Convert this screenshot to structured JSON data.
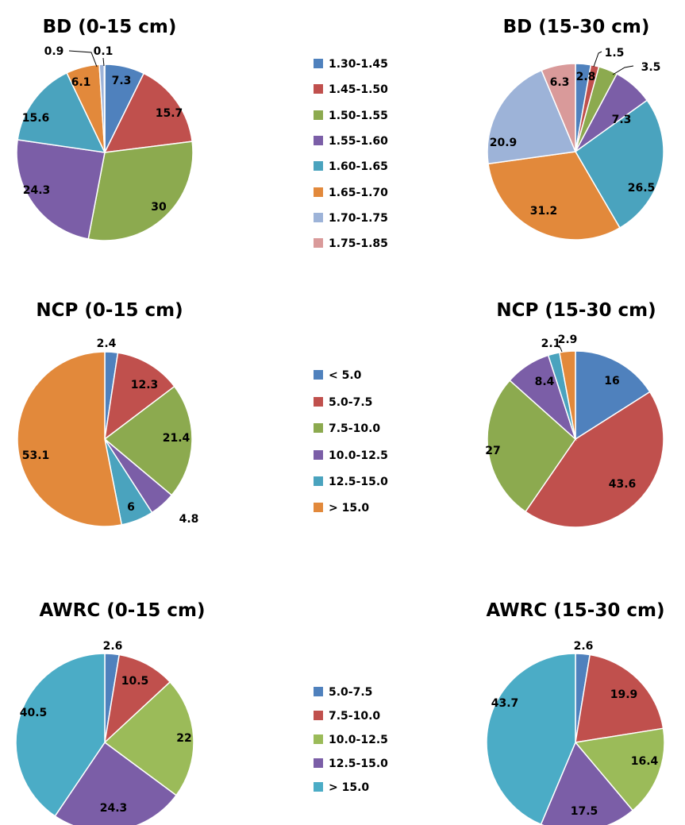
{
  "colors": {
    "blue": "#4F81BD",
    "red": "#C0504D",
    "green_olive": "#8CAA4F",
    "purple": "#7B5EA7",
    "teal": "#4AA3BE",
    "orange": "#E2893B",
    "lavender": "#9DB3D8",
    "pink": "#D99A9A",
    "lime": "#9BBB59",
    "sky": "#4BACC6"
  },
  "legends": [
    {
      "name": "BD",
      "entries": [
        {
          "label": "1.30-1.45",
          "color": "#4F81BD"
        },
        {
          "label": "1.45-1.50",
          "color": "#C0504D"
        },
        {
          "label": "1.50-1.55",
          "color": "#8CAA4F"
        },
        {
          "label": "1.55-1.60",
          "color": "#7B5EA7"
        },
        {
          "label": "1.60-1.65",
          "color": "#4AA3BE"
        },
        {
          "label": "1.65-1.70",
          "color": "#E2893B"
        },
        {
          "label": "1.70-1.75",
          "color": "#9DB3D8"
        },
        {
          "label": "1.75-1.85",
          "color": "#D99A9A"
        }
      ]
    },
    {
      "name": "NCP",
      "entries": [
        {
          "label": "< 5.0",
          "color": "#4F81BD"
        },
        {
          "label": "5.0-7.5",
          "color": "#C0504D"
        },
        {
          "label": "7.5-10.0",
          "color": "#8CAA4F"
        },
        {
          "label": "10.0-12.5",
          "color": "#7B5EA7"
        },
        {
          "label": "12.5-15.0",
          "color": "#4AA3BE"
        },
        {
          "label": "> 15.0",
          "color": "#E2893B"
        }
      ]
    },
    {
      "name": "AWRC",
      "entries": [
        {
          "label": "5.0-7.5",
          "color": "#4F81BD"
        },
        {
          "label": "7.5-10.0",
          "color": "#C0504D"
        },
        {
          "label": "10.0-12.5",
          "color": "#9BBB59"
        },
        {
          "label": "12.5-15.0",
          "color": "#7B5EA7"
        },
        {
          "label": "> 15.0",
          "color": "#4BACC6"
        }
      ]
    }
  ],
  "chart_data": [
    {
      "type": "pie",
      "title": "BD (0-15 cm)",
      "categories": [
        "1.30-1.45",
        "1.45-1.50",
        "1.50-1.55",
        "1.55-1.60",
        "1.60-1.65",
        "1.65-1.70",
        "1.70-1.75",
        "1.75-1.85"
      ],
      "values": [
        7.3,
        15.7,
        30,
        24.3,
        15.6,
        6.1,
        0.9,
        0.1
      ],
      "labels": [
        "7.3",
        "15.7",
        "30",
        "24.3",
        "15.6",
        "6.1",
        "0.9",
        "0.1"
      ],
      "colors": [
        "#4F81BD",
        "#C0504D",
        "#8CAA4F",
        "#7B5EA7",
        "#4AA3BE",
        "#E2893B",
        "#9DB3D8",
        "#D99A9A"
      ]
    },
    {
      "type": "pie",
      "title": "BD (15-30 cm)",
      "categories": [
        "1.30-1.45",
        "1.45-1.50",
        "1.50-1.55",
        "1.55-1.60",
        "1.60-1.65",
        "1.65-1.70",
        "1.70-1.75",
        "1.75-1.85"
      ],
      "values": [
        2.8,
        1.5,
        3.5,
        7.3,
        26.5,
        31.2,
        20.9,
        6.3
      ],
      "labels": [
        "2.8",
        "1.5",
        "3.5",
        "7.3",
        "26.5",
        "31.2",
        "20.9",
        "6.3"
      ],
      "colors": [
        "#4F81BD",
        "#C0504D",
        "#8CAA4F",
        "#7B5EA7",
        "#4AA3BE",
        "#E2893B",
        "#9DB3D8",
        "#D99A9A"
      ]
    },
    {
      "type": "pie",
      "title": "NCP (0-15 cm)",
      "categories": [
        "< 5.0",
        "5.0-7.5",
        "7.5-10.0",
        "10.0-12.5",
        "12.5-15.0",
        "> 15.0"
      ],
      "values": [
        2.4,
        12.3,
        21.4,
        4.8,
        6,
        53.1
      ],
      "labels": [
        "2.4",
        "12.3",
        "21.4",
        "4.8",
        "6",
        "53.1"
      ],
      "colors": [
        "#4F81BD",
        "#C0504D",
        "#8CAA4F",
        "#7B5EA7",
        "#4AA3BE",
        "#E2893B"
      ]
    },
    {
      "type": "pie",
      "title": "NCP (15-30 cm)",
      "categories": [
        "< 5.0",
        "5.0-7.5",
        "7.5-10.0",
        "10.0-12.5",
        "12.5-15.0",
        "> 15.0"
      ],
      "values": [
        16,
        43.6,
        27,
        8.4,
        2.1,
        2.9
      ],
      "labels": [
        "16",
        "43.6",
        "27",
        "8.4",
        "2.1",
        "2.9"
      ],
      "colors": [
        "#4F81BD",
        "#C0504D",
        "#8CAA4F",
        "#7B5EA7",
        "#4AA3BE",
        "#E2893B"
      ]
    },
    {
      "type": "pie",
      "title": "AWRC (0-15 cm)",
      "categories": [
        "5.0-7.5",
        "7.5-10.0",
        "10.0-12.5",
        "12.5-15.0",
        "> 15.0"
      ],
      "values": [
        2.6,
        10.5,
        22,
        24.3,
        40.5
      ],
      "labels": [
        "2.6",
        "10.5",
        "22",
        "24.3",
        "40.5"
      ],
      "colors": [
        "#4F81BD",
        "#C0504D",
        "#9BBB59",
        "#7B5EA7",
        "#4BACC6"
      ]
    },
    {
      "type": "pie",
      "title": "AWRC (15-30 cm)",
      "categories": [
        "5.0-7.5",
        "7.5-10.0",
        "10.0-12.5",
        "12.5-15.0",
        "> 15.0"
      ],
      "values": [
        2.6,
        19.9,
        16.4,
        17.5,
        43.7
      ],
      "labels": [
        "2.6",
        "19.9",
        "16.4",
        "17.5",
        "43.7"
      ],
      "colors": [
        "#4F81BD",
        "#C0504D",
        "#9BBB59",
        "#7B5EA7",
        "#4BACC6"
      ]
    }
  ]
}
